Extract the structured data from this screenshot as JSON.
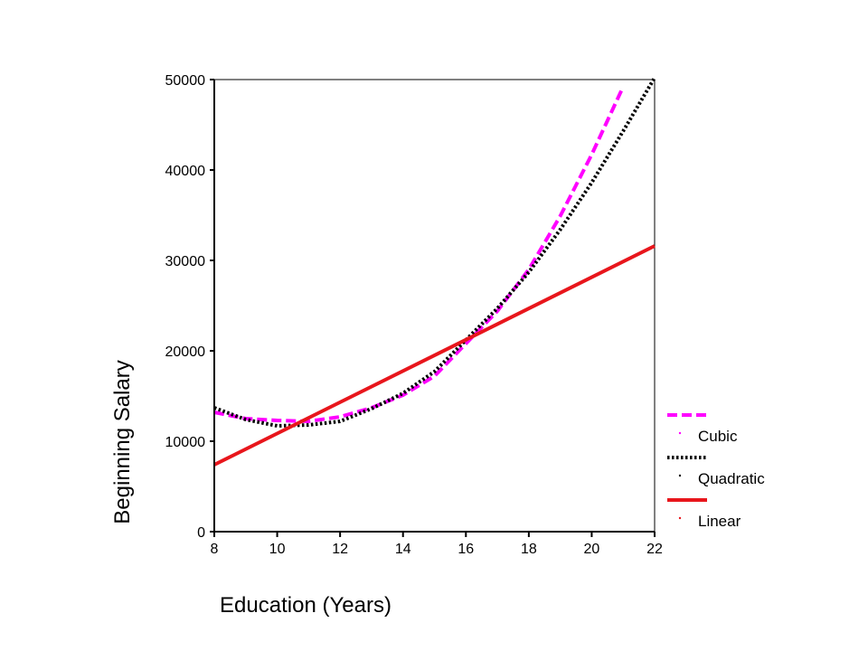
{
  "chart_data": {
    "type": "line",
    "title": "",
    "xlabel": "Education (Years)",
    "ylabel": "Beginning Salary",
    "xlim": [
      8,
      22
    ],
    "ylim": [
      0,
      50000
    ],
    "xticks": [
      "8",
      "10",
      "12",
      "14",
      "16",
      "18",
      "20",
      "22"
    ],
    "yticks": [
      "0",
      "10000",
      "20000",
      "30000",
      "40000",
      "50000"
    ],
    "grid": false,
    "legend_position": "right",
    "series": [
      {
        "name": "Cubic",
        "color": "#ff00ff",
        "style": "dashed",
        "x": [
          8,
          9,
          10,
          11,
          12,
          13,
          14,
          15,
          16,
          17,
          18,
          19,
          20,
          21
        ],
        "y": [
          13200,
          12500,
          12300,
          12200,
          12700,
          13700,
          15100,
          17200,
          20800,
          24400,
          29000,
          34900,
          41700,
          49200
        ]
      },
      {
        "name": "Quadratic",
        "color": "#000000",
        "style": "dotted",
        "x": [
          8,
          9,
          10,
          11,
          12,
          13,
          14,
          15,
          16,
          17,
          18,
          19,
          20,
          21,
          22
        ],
        "y": [
          13700,
          12400,
          11700,
          11800,
          12200,
          13600,
          15300,
          17700,
          21200,
          24700,
          28700,
          33400,
          38600,
          44300,
          50200
        ]
      },
      {
        "name": "Linear",
        "color": "#e8161c",
        "style": "solid",
        "x": [
          8,
          22
        ],
        "y": [
          7400,
          31600
        ]
      }
    ]
  }
}
